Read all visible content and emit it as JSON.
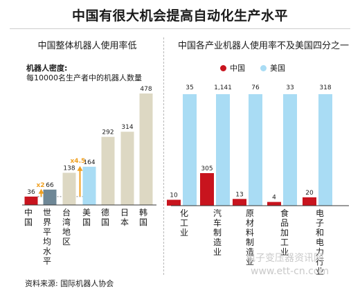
{
  "title": "中国有很大机会提高自动化生产水平",
  "left_panel": {
    "subtitle": "中国整体机器人使用率低",
    "ylabel_bold": "机器人密度:",
    "ylabel": "每10000名生产者中的机器人数量",
    "annotations": {
      "x2": "x2",
      "x45": "x4.5"
    }
  },
  "right_panel": {
    "subtitle": "中国各产业机器人使用率不及美国四分之一",
    "legend": [
      "中国",
      "美国"
    ]
  },
  "source": "资料来源: 国际机器人协会",
  "watermark": "电子变压器资讯网",
  "watermark_url": "www.ett-cn.com",
  "colors": {
    "china": "#c8141e",
    "usa": "#a9dcf4",
    "gray": "#6e8796",
    "others": "#ddd8c3",
    "arrow": "#f0a020"
  },
  "chart_data": [
    {
      "type": "bar",
      "title": "中国整体机器人使用率低",
      "categories": [
        "中国",
        "世界平均水平",
        "台湾地区",
        "美国",
        "德国",
        "日本",
        "韩国"
      ],
      "values": [
        36,
        66,
        138,
        164,
        292,
        314,
        478
      ],
      "value_labels": [
        "36",
        "66",
        "138",
        "164",
        "292",
        "314",
        "478"
      ],
      "ylabel": "机器人密度: 每10000名生产者中的机器人数量",
      "ylim": [
        0,
        500
      ],
      "grid": false
    },
    {
      "type": "bar",
      "title": "中国各产业机器人使用率不及美国四分之一",
      "categories": [
        "化工业",
        "汽车制造业",
        "原材料制造业",
        "食品加工业",
        "电子和电力行业"
      ],
      "series": [
        {
          "name": "中国",
          "values": [
            10,
            305,
            13,
            4,
            20
          ],
          "labels": [
            "10",
            "305",
            "13",
            "4",
            "20"
          ]
        },
        {
          "name": "美国",
          "values": [
            35,
            1141,
            76,
            33,
            318
          ],
          "labels": [
            "35",
            "1,141",
            "76",
            "33",
            "318"
          ]
        }
      ],
      "legend": "top",
      "grid": false
    }
  ]
}
